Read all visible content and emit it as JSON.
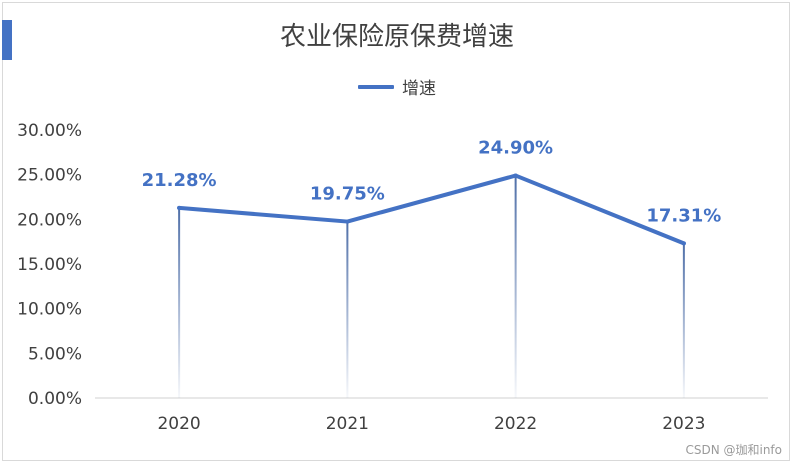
{
  "chart_data": {
    "type": "line",
    "title": "农业保险原保费增速",
    "categories": [
      "2020",
      "2021",
      "2022",
      "2023"
    ],
    "series": [
      {
        "name": "增速",
        "values": [
          21.28,
          19.75,
          24.9,
          17.31
        ],
        "labels": [
          "21.28%",
          "19.75%",
          "24.90%",
          "17.31%"
        ]
      }
    ],
    "ylim": [
      0,
      30
    ],
    "yticks": [
      "0.00%",
      "5.00%",
      "10.00%",
      "15.00%",
      "20.00%",
      "25.00%",
      "30.00%"
    ],
    "legend": "top",
    "grid": false,
    "colors": {
      "series": "#4472c4",
      "accent": "#4472c4"
    }
  },
  "watermark": "CSDN @珈和info"
}
